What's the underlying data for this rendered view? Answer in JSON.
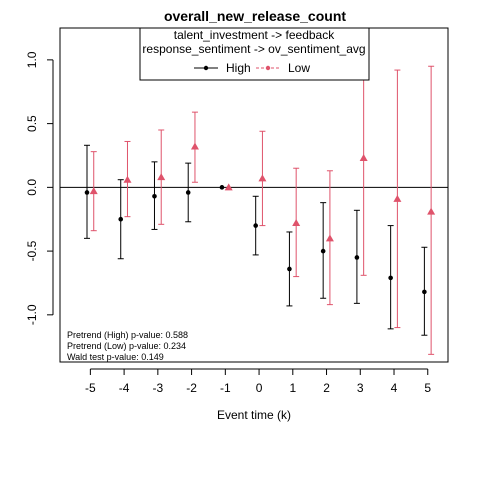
{
  "chart_data": {
    "type": "scatter",
    "title": "overall_new_release_count",
    "xlabel": "Event time (k)",
    "ylabel": "",
    "x_ticks": [
      -5,
      -4,
      -3,
      -2,
      -1,
      0,
      1,
      2,
      3,
      4,
      5
    ],
    "y_ticks": [
      -1.0,
      -0.5,
      0.0,
      0.5,
      1.0
    ],
    "y_tick_labels": [
      "-1.0",
      "-0.5",
      "0.0",
      "0.5",
      "1.0"
    ],
    "xlim": [
      -5.9,
      5.6
    ],
    "ylim": [
      -1.37,
      1.25
    ],
    "reference_line_y": 0,
    "legend": {
      "placement": "top",
      "lines": [
        "talent_investment -> feedback",
        "response_sentiment -> ov_sentiment_avg"
      ],
      "entries": [
        "High",
        "Low"
      ]
    },
    "series": [
      {
        "name": "High",
        "color": "#000000",
        "marker": "circle",
        "offset": -0.1,
        "points": [
          {
            "x": -5,
            "y": -0.04,
            "lo": -0.4,
            "hi": 0.33
          },
          {
            "x": -4,
            "y": -0.25,
            "lo": -0.56,
            "hi": 0.06
          },
          {
            "x": -3,
            "y": -0.07,
            "lo": -0.33,
            "hi": 0.2
          },
          {
            "x": -2,
            "y": -0.04,
            "lo": -0.27,
            "hi": 0.19
          },
          {
            "x": -1,
            "y": 0.0,
            "lo": 0.0,
            "hi": 0.0
          },
          {
            "x": 0,
            "y": -0.3,
            "lo": -0.53,
            "hi": -0.07
          },
          {
            "x": 1,
            "y": -0.64,
            "lo": -0.93,
            "hi": -0.35
          },
          {
            "x": 2,
            "y": -0.5,
            "lo": -0.87,
            "hi": -0.12
          },
          {
            "x": 3,
            "y": -0.55,
            "lo": -0.91,
            "hi": -0.18
          },
          {
            "x": 4,
            "y": -0.71,
            "lo": -1.11,
            "hi": -0.3
          },
          {
            "x": 5,
            "y": -0.82,
            "lo": -1.16,
            "hi": -0.47
          }
        ]
      },
      {
        "name": "Low",
        "color": "#DF536B",
        "marker": "triangle",
        "offset": 0.1,
        "points": [
          {
            "x": -5,
            "y": -0.03,
            "lo": -0.34,
            "hi": 0.28
          },
          {
            "x": -4,
            "y": 0.06,
            "lo": -0.23,
            "hi": 0.36
          },
          {
            "x": -3,
            "y": 0.08,
            "lo": -0.29,
            "hi": 0.45
          },
          {
            "x": -2,
            "y": 0.32,
            "lo": 0.04,
            "hi": 0.59
          },
          {
            "x": -1,
            "y": 0.0,
            "lo": 0.0,
            "hi": 0.0
          },
          {
            "x": 0,
            "y": 0.07,
            "lo": -0.3,
            "hi": 0.44
          },
          {
            "x": 1,
            "y": -0.28,
            "lo": -0.7,
            "hi": 0.15
          },
          {
            "x": 2,
            "y": -0.4,
            "lo": -0.92,
            "hi": 0.13
          },
          {
            "x": 3,
            "y": 0.23,
            "lo": -0.69,
            "hi": 1.16
          },
          {
            "x": 4,
            "y": -0.09,
            "lo": -1.1,
            "hi": 0.92
          },
          {
            "x": 5,
            "y": -0.19,
            "lo": -1.31,
            "hi": 0.95
          }
        ]
      }
    ],
    "annotations": [
      "Pretrend (High) p-value: 0.588",
      "Pretrend (Low) p-value: 0.234",
      "Wald test p-value: 0.149"
    ]
  }
}
